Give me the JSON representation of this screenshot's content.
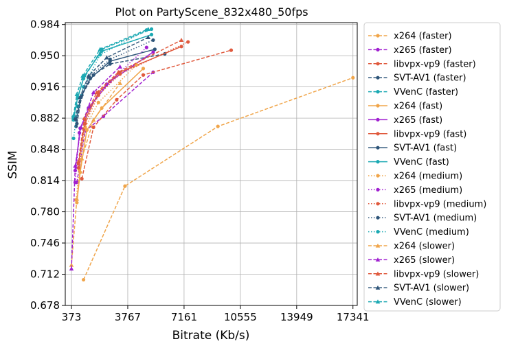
{
  "chart_data": {
    "type": "line",
    "title": "Plot on PartyScene_832x480_50fps",
    "xlabel": "Bitrate (Kb/s)",
    "ylabel": "SSIM",
    "xlim": [
      0,
      17600
    ],
    "ylim": [
      0.678,
      0.986
    ],
    "xticks": [
      373,
      3767,
      7161,
      10555,
      13949,
      17341
    ],
    "yticks": [
      0.678,
      0.712,
      0.746,
      0.78,
      0.814,
      0.848,
      0.882,
      0.916,
      0.95,
      0.984
    ],
    "xtick_labels": [
      "373",
      "3767",
      "7161",
      "10555",
      "13949",
      "17341"
    ],
    "ytick_labels": [
      "0.678",
      "0.712",
      "0.746",
      "0.780",
      "0.814",
      "0.848",
      "0.882",
      "0.916",
      "0.950",
      "0.984"
    ],
    "grid": true,
    "legend_position": "outside-right",
    "series": [
      {
        "name": "x264 (faster)",
        "color": "#f0a54a",
        "dash": "dashed",
        "marker": "circle",
        "x": [
          1100,
          3600,
          9200,
          17341
        ],
        "y": [
          0.706,
          0.808,
          0.873,
          0.926
        ]
      },
      {
        "name": "x265 (faster)",
        "color": "#a020d0",
        "dash": "dashed",
        "marker": "circle",
        "x": [
          700,
          1200,
          2300,
          5300
        ],
        "y": [
          0.812,
          0.868,
          0.884,
          0.932
        ]
      },
      {
        "name": "libvpx-vp9 (faster)",
        "color": "#e05a3e",
        "dash": "dashed",
        "marker": "circle",
        "x": [
          1000,
          1700,
          3100,
          4700,
          10000
        ],
        "y": [
          0.816,
          0.872,
          0.902,
          0.929,
          0.956
        ]
      },
      {
        "name": "SVT-AV1 (faster)",
        "color": "#2e5579",
        "dash": "dashed",
        "marker": "circle",
        "x": [
          700,
          1000,
          1700,
          2700,
          6000
        ],
        "y": [
          0.876,
          0.907,
          0.929,
          0.941,
          0.952
        ]
      },
      {
        "name": "VVenC (faster)",
        "color": "#1ca9b3",
        "dash": "dashed",
        "marker": "circle",
        "x": [
          500,
          750,
          1100,
          2200,
          5200
        ],
        "y": [
          0.88,
          0.904,
          0.925,
          0.957,
          0.979
        ]
      },
      {
        "name": "x264 (fast)",
        "color": "#f0a54a",
        "dash": "solid",
        "marker": "circle",
        "x": [
          700,
          900,
          1300,
          2200,
          4700
        ],
        "y": [
          0.79,
          0.823,
          0.869,
          0.893,
          0.936
        ]
      },
      {
        "name": "x265 (fast)",
        "color": "#a020d0",
        "dash": "solid",
        "marker": "circle",
        "x": [
          600,
          900,
          1500,
          2700,
          5300
        ],
        "y": [
          0.825,
          0.871,
          0.895,
          0.922,
          0.954
        ]
      },
      {
        "name": "libvpx-vp9 (fast)",
        "color": "#e05a3e",
        "dash": "solid",
        "marker": "circle",
        "x": [
          800,
          1200,
          2000,
          3300,
          7000
        ],
        "y": [
          0.832,
          0.88,
          0.91,
          0.932,
          0.96
        ]
      },
      {
        "name": "SVT-AV1 (fast)",
        "color": "#2e5579",
        "dash": "solid",
        "marker": "circle",
        "x": [
          650,
          950,
          1500,
          2700,
          5400
        ],
        "y": [
          0.88,
          0.905,
          0.925,
          0.944,
          0.957
        ]
      },
      {
        "name": "VVenC (fast)",
        "color": "#1ca9b3",
        "dash": "solid",
        "marker": "circle",
        "x": [
          500,
          750,
          1150,
          2200,
          5200
        ],
        "y": [
          0.882,
          0.905,
          0.928,
          0.955,
          0.973
        ]
      },
      {
        "name": "x264 (medium)",
        "color": "#f0a54a",
        "dash": "dotted",
        "marker": "circle",
        "x": [
          650,
          850,
          1200,
          2000,
          4300
        ],
        "y": [
          0.793,
          0.826,
          0.872,
          0.899,
          0.94
        ]
      },
      {
        "name": "x265 (medium)",
        "color": "#a020d0",
        "dash": "dotted",
        "marker": "circle",
        "x": [
          600,
          850,
          1400,
          2500,
          4900
        ],
        "y": [
          0.812,
          0.866,
          0.893,
          0.919,
          0.959
        ]
      },
      {
        "name": "libvpx-vp9 (medium)",
        "color": "#e05a3e",
        "dash": "dotted",
        "marker": "circle",
        "x": [
          800,
          1200,
          2000,
          3300,
          7400
        ],
        "y": [
          0.828,
          0.876,
          0.907,
          0.93,
          0.965
        ]
      },
      {
        "name": "SVT-AV1 (medium)",
        "color": "#2e5579",
        "dash": "dotted",
        "marker": "circle",
        "x": [
          650,
          950,
          1450,
          2700,
          5300
        ],
        "y": [
          0.873,
          0.905,
          0.927,
          0.946,
          0.967
        ]
      },
      {
        "name": "VVenC (medium)",
        "color": "#1ca9b3",
        "dash": "dotted",
        "marker": "circle",
        "x": [
          500,
          750,
          1100,
          2100,
          4900
        ],
        "y": [
          0.86,
          0.895,
          0.916,
          0.951,
          0.978
        ]
      },
      {
        "name": "x264 (slower)",
        "color": "#f0a54a",
        "dash": "dashed",
        "marker": "triangle",
        "x": [
          373,
          700,
          1000,
          1700,
          3300
        ],
        "y": [
          0.722,
          0.794,
          0.838,
          0.88,
          0.92
        ]
      },
      {
        "name": "x265 (slower)",
        "color": "#a020d0",
        "dash": "dashed",
        "marker": "triangle",
        "x": [
          373,
          600,
          950,
          1700,
          3300
        ],
        "y": [
          0.718,
          0.83,
          0.872,
          0.91,
          0.938
        ]
      },
      {
        "name": "libvpx-vp9 (slower)",
        "color": "#e05a3e",
        "dash": "dashed",
        "marker": "triangle",
        "x": [
          800,
          1150,
          1900,
          3200,
          7000
        ],
        "y": [
          0.835,
          0.882,
          0.91,
          0.932,
          0.967
        ]
      },
      {
        "name": "SVT-AV1 (slower)",
        "color": "#2e5579",
        "dash": "dashed",
        "marker": "triangle",
        "x": [
          600,
          900,
          1400,
          2500,
          5000
        ],
        "y": [
          0.882,
          0.905,
          0.928,
          0.948,
          0.97
        ]
      },
      {
        "name": "VVenC (slower)",
        "color": "#1ca9b3",
        "dash": "dashed",
        "marker": "triangle",
        "x": [
          500,
          700,
          1050,
          2100,
          5000
        ],
        "y": [
          0.885,
          0.908,
          0.928,
          0.957,
          0.979
        ]
      }
    ]
  }
}
